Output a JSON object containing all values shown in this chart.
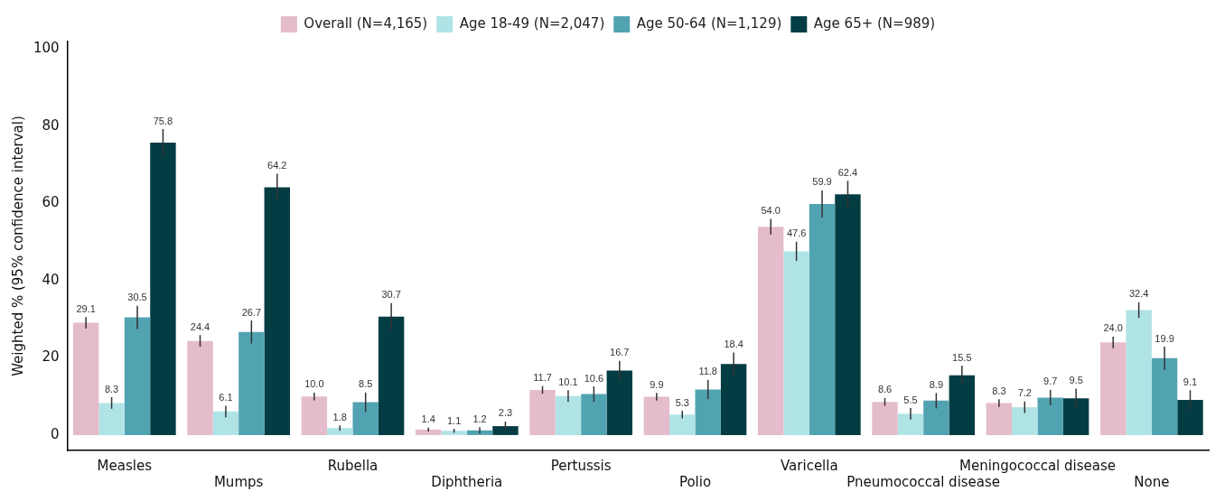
{
  "chart_data": {
    "type": "bar",
    "ylabel": "Weighted % (95% confidence interval)",
    "categories": [
      "Measles",
      "Mumps",
      "Rubella",
      "Diphtheria",
      "Pertussis",
      "Polio",
      "Varicella",
      "Pneumococcal disease",
      "Meningococcal disease",
      "None"
    ],
    "series": [
      {
        "name": "Overall (N=4,165)",
        "color": "#e5bccb",
        "values": [
          29.1,
          24.4,
          10.0,
          1.4,
          11.7,
          9.9,
          54.0,
          8.6,
          8.3,
          24.0
        ],
        "errors": [
          1.5,
          1.5,
          1,
          0.5,
          1,
          1,
          2,
          1,
          1,
          1.5
        ],
        "value_labels": [
          "29.1",
          "24.4",
          "10.0",
          "1.4",
          "11.7",
          "9.9",
          "54.0",
          "8.6",
          "8.3",
          "24.0"
        ]
      },
      {
        "name": "Age 18-49 (N=2,047)",
        "color": "#b0e3e6",
        "values": [
          8.3,
          6.1,
          1.8,
          1.1,
          10.1,
          5.3,
          47.6,
          5.5,
          7.2,
          32.4
        ],
        "errors": [
          1.5,
          1.5,
          0.7,
          0.5,
          1.5,
          1,
          2.5,
          1.5,
          1.5,
          2
        ],
        "value_labels": [
          "8.3",
          "6.1",
          "1.8",
          "1.1",
          "10.1",
          "5.3",
          "47.6",
          "5.5",
          "7.2",
          "32.4"
        ]
      },
      {
        "name": "Age 50-64 (N=1,129)",
        "color": "#52a3b1",
        "values": [
          30.5,
          26.7,
          8.5,
          1.2,
          10.6,
          11.8,
          59.9,
          8.9,
          9.7,
          19.9
        ],
        "errors": [
          3,
          3,
          2.5,
          0.8,
          2,
          2.5,
          3.5,
          2,
          2,
          3
        ],
        "value_labels": [
          "30.5",
          "26.7",
          "8.5",
          "1.2",
          "10.6",
          "11.8",
          "59.9",
          "8.9",
          "9.7",
          "19.9"
        ]
      },
      {
        "name": "Age 65+ (N=989)",
        "color": "#033c43",
        "values": [
          75.8,
          64.2,
          30.7,
          2.3,
          16.7,
          18.4,
          62.4,
          15.5,
          9.5,
          9.1
        ],
        "errors": [
          3.5,
          3.5,
          3.5,
          1.2,
          2.5,
          3,
          3.5,
          2.5,
          2.5,
          2.5
        ],
        "value_labels": [
          "75.8",
          "64.2",
          "30.7",
          "2.3",
          "16.7",
          "18.4",
          "62.4",
          "15.5",
          "9.5",
          "9.1"
        ]
      }
    ],
    "ylim": [
      -4,
      102
    ],
    "yticks": [
      0,
      20,
      40,
      60,
      80,
      100
    ],
    "grid": false,
    "legend": "top"
  }
}
